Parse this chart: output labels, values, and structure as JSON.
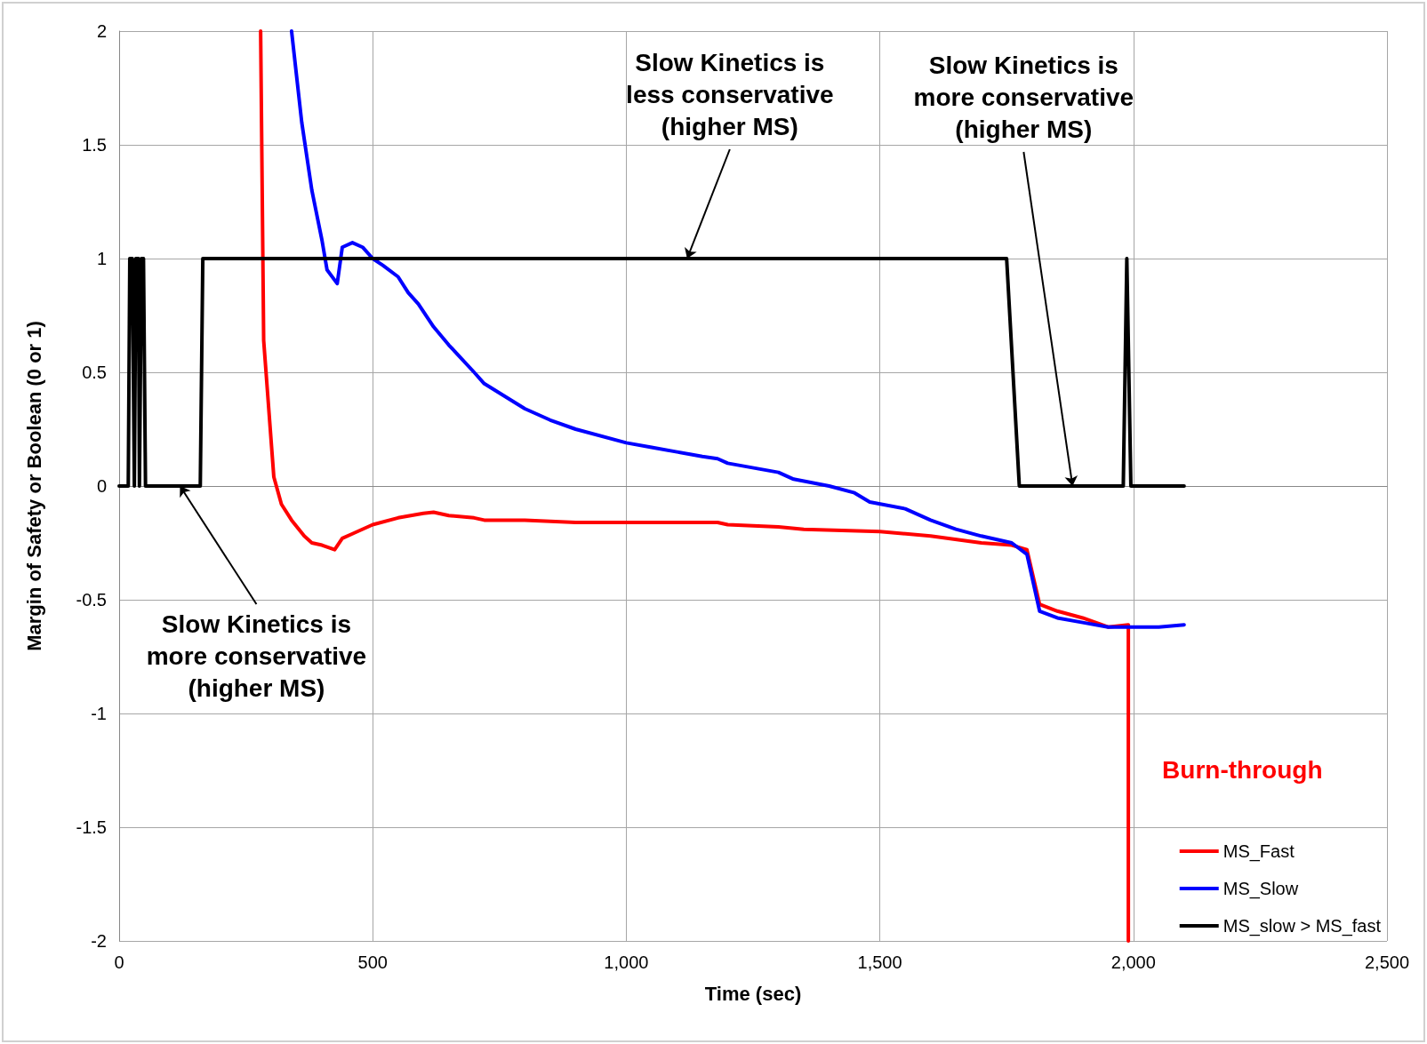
{
  "chart_data": {
    "type": "line",
    "xlabel": "Time (sec)",
    "ylabel": "Margin of Safety or Boolean (0 or 1)",
    "xlim": [
      0,
      2500
    ],
    "xticks": [
      0,
      500,
      {
        "value": 1000,
        "label": "1,000"
      },
      {
        "value": 1500,
        "label": "1,500"
      },
      {
        "value": 2000,
        "label": "2,000"
      },
      {
        "value": 2500,
        "label": "2,500"
      }
    ],
    "ylim": [
      -2,
      2
    ],
    "yticks": [
      -2,
      -1.5,
      -1,
      -0.5,
      0,
      0.5,
      1,
      1.5,
      2
    ],
    "grid": true,
    "legend": "bottom right",
    "marker": "none",
    "line_style": "solid",
    "series": [
      {
        "name": "MS_Fast",
        "color": "#ff0000",
        "x": [
          279,
          285,
          305,
          320,
          340,
          365,
          380,
          400,
          425,
          440,
          460,
          500,
          550,
          600,
          620,
          650,
          700,
          720,
          800,
          900,
          1000,
          1100,
          1180,
          1200,
          1300,
          1350,
          1500,
          1600,
          1700,
          1760,
          1790,
          1815,
          1850,
          1900,
          1950,
          1990,
          1990
        ],
        "values": [
          2,
          0.64,
          0.04,
          -0.08,
          -0.15,
          -0.22,
          -0.25,
          -0.26,
          -0.28,
          -0.23,
          -0.21,
          -0.17,
          -0.14,
          -0.12,
          -0.115,
          -0.13,
          -0.14,
          -0.15,
          -0.15,
          -0.16,
          -0.16,
          -0.16,
          -0.16,
          -0.17,
          -0.18,
          -0.19,
          -0.2,
          -0.22,
          -0.25,
          -0.26,
          -0.28,
          -0.52,
          -0.55,
          -0.58,
          -0.62,
          -0.61,
          -2
        ]
      },
      {
        "name": "MS_Slow",
        "color": "#0000ff",
        "x": [
          340,
          360,
          380,
          400,
          410,
          430,
          440,
          460,
          480,
          500,
          520,
          550,
          570,
          590,
          620,
          650,
          700,
          720,
          800,
          850,
          900,
          1000,
          1050,
          1100,
          1150,
          1180,
          1200,
          1300,
          1330,
          1400,
          1450,
          1480,
          1550,
          1600,
          1650,
          1700,
          1760,
          1790,
          1815,
          1850,
          1900,
          1950,
          2000,
          2050,
          2100
        ],
        "values": [
          2,
          1.6,
          1.3,
          1.08,
          0.95,
          0.89,
          1.05,
          1.07,
          1.05,
          1,
          0.97,
          0.92,
          0.85,
          0.8,
          0.7,
          0.62,
          0.5,
          0.45,
          0.34,
          0.29,
          0.25,
          0.19,
          0.17,
          0.15,
          0.13,
          0.12,
          0.1,
          0.06,
          0.03,
          0,
          -0.03,
          -0.07,
          -0.1,
          -0.15,
          -0.19,
          -0.22,
          -0.25,
          -0.3,
          -0.55,
          -0.58,
          -0.6,
          -0.62,
          -0.62,
          -0.62,
          -0.61
        ]
      },
      {
        "name": "MS_slow > MS_fast",
        "color": "#000000",
        "x": [
          0,
          18,
          21,
          26,
          30,
          33,
          38,
          40,
          44,
          48,
          52,
          160,
          165,
          1750,
          1775,
          1980,
          1987,
          1995,
          2100
        ],
        "values": [
          0,
          0,
          1,
          1,
          0,
          1,
          1,
          0,
          1,
          1,
          0,
          0,
          1,
          1,
          0,
          0,
          1,
          0,
          0
        ]
      }
    ],
    "annotations": [
      {
        "text": "Slow Kinetics is\nmore conservative\n(higher MS)",
        "x": 120,
        "y": 0
      },
      {
        "text": "Slow Kinetics is\nless conservative\n(higher MS)",
        "x": 1120,
        "y": 1
      },
      {
        "text": "Slow Kinetics is\nmore conservative\n(higher MS)",
        "x": 1880,
        "y": 0
      },
      {
        "text": "Burn-through",
        "x": 1990,
        "y": -1.24
      }
    ]
  }
}
